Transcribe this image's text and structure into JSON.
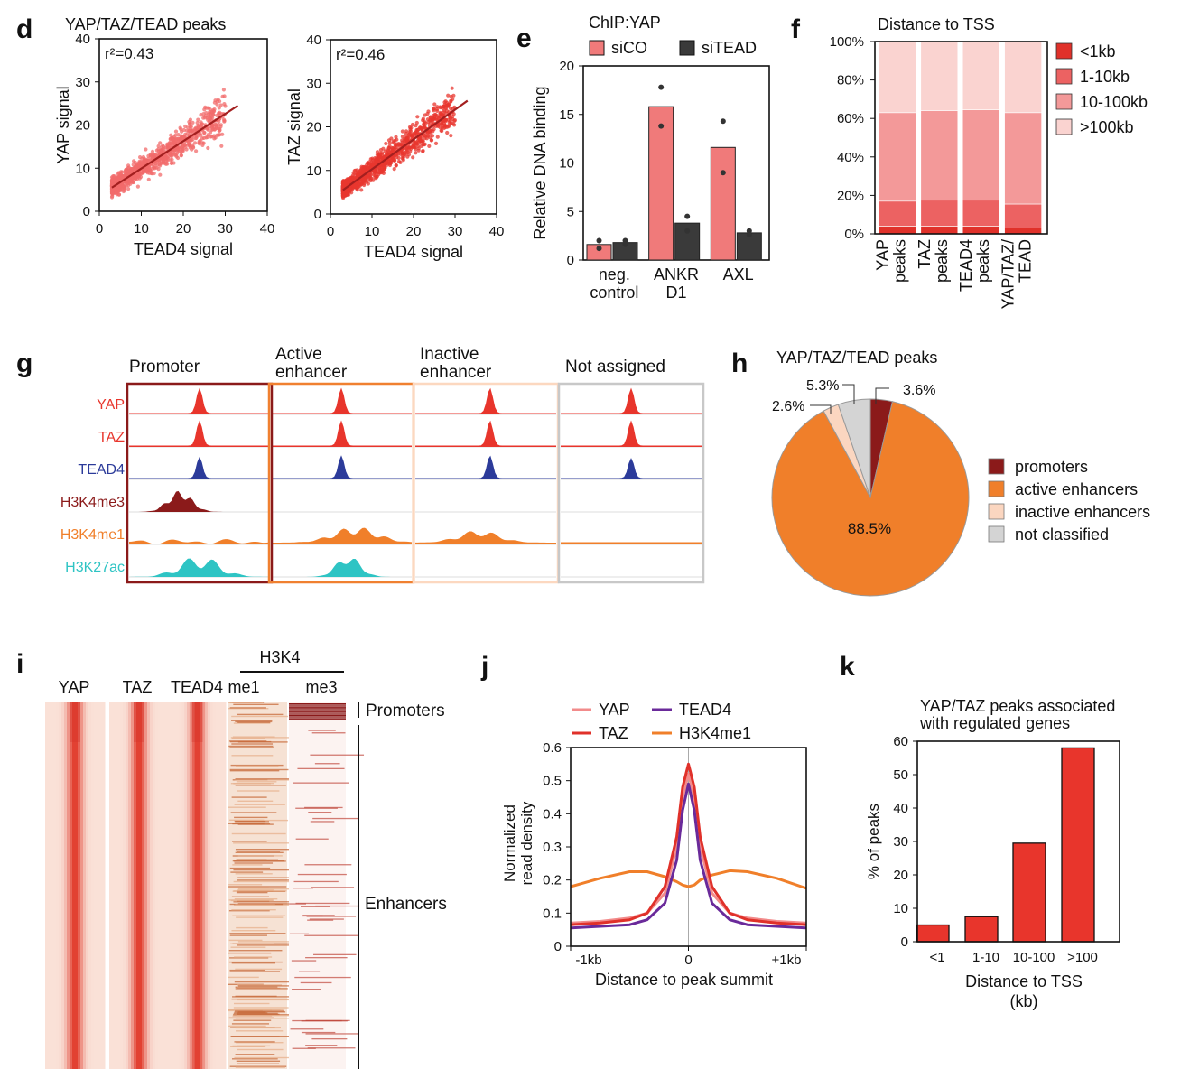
{
  "panels": {
    "d": {
      "letter": "d",
      "title": "YAP/TAZ/TEAD peaks"
    },
    "e": {
      "letter": "e"
    },
    "f": {
      "letter": "f"
    },
    "g": {
      "letter": "g"
    },
    "h": {
      "letter": "h"
    },
    "i": {
      "letter": "i"
    },
    "j": {
      "letter": "j"
    },
    "k": {
      "letter": "k"
    }
  },
  "chart_data": [
    {
      "id": "d1",
      "type": "scatter",
      "title": "YAP/TAZ/TEAD peaks",
      "xlabel": "TEAD4 signal",
      "ylabel": "YAP signal",
      "xlim": [
        0,
        40
      ],
      "ylim": [
        0,
        40
      ],
      "xticks": [
        "0",
        "10",
        "20",
        "30",
        "40"
      ],
      "yticks": [
        "0",
        "10",
        "20",
        "30",
        "40"
      ],
      "annotation": "r²=0.43",
      "trend": {
        "from": [
          3,
          5.5
        ],
        "to": [
          33,
          24.5
        ]
      },
      "color": "#f26b6b"
    },
    {
      "id": "d2",
      "type": "scatter",
      "xlabel": "TEAD4 signal",
      "ylabel": "TAZ signal",
      "xlim": [
        0,
        40
      ],
      "ylim": [
        0,
        40
      ],
      "xticks": [
        "0",
        "10",
        "20",
        "30",
        "40"
      ],
      "yticks": [
        "0",
        "10",
        "20",
        "30",
        "40"
      ],
      "annotation": "r²=0.46",
      "trend": {
        "from": [
          3,
          5.5
        ],
        "to": [
          33,
          26
        ]
      },
      "color": "#e8372f"
    },
    {
      "id": "e",
      "type": "bar",
      "title": "ChIP:YAP",
      "ylabel": "Relative DNA binding",
      "ylim": [
        0,
        20
      ],
      "yticks": [
        "0",
        "5",
        "10",
        "15",
        "20"
      ],
      "categories": [
        "neg. control",
        "ANKR D1",
        "AXL"
      ],
      "category_lines": [
        [
          "neg.",
          "control"
        ],
        [
          "ANKR",
          "D1"
        ],
        [
          "AXL"
        ]
      ],
      "series": [
        {
          "name": "siCO",
          "color": "#f07a7a",
          "values": [
            1.6,
            15.8,
            11.6
          ],
          "points": [
            [
              1.2,
              2.0
            ],
            [
              17.8,
              13.8
            ],
            [
              14.3,
              9.0
            ]
          ]
        },
        {
          "name": "siTEAD",
          "color": "#3a3a3a",
          "values": [
            1.8,
            3.8,
            2.8
          ],
          "points": [
            [
              2.0,
              1.6
            ],
            [
              4.5,
              3.0
            ],
            [
              3.0,
              2.6
            ]
          ]
        }
      ]
    },
    {
      "id": "f",
      "type": "bar",
      "stacked": true,
      "title": "Distance to TSS",
      "categories": [
        "YAP peaks",
        "TAZ peaks",
        "TEAD4 peaks",
        "YAP/TAZ/ TEAD"
      ],
      "category_lines": [
        [
          "YAP",
          "peaks"
        ],
        [
          "TAZ",
          "peaks"
        ],
        [
          "TEAD4",
          "peaks"
        ],
        [
          "YAP/TAZ/",
          "TEAD"
        ]
      ],
      "yticks": [
        "0%",
        "20%",
        "40%",
        "60%",
        "80%",
        "100%"
      ],
      "ylim": [
        0,
        100
      ],
      "series": [
        {
          "name": "<1kb",
          "color": "#e0312a",
          "values": [
            4,
            4,
            4,
            3
          ]
        },
        {
          "name": "1-10kb",
          "color": "#ec6262",
          "values": [
            13,
            13.5,
            13.5,
            12.5
          ]
        },
        {
          "name": "10-100kb",
          "color": "#f39999",
          "values": [
            46,
            46.5,
            47,
            47.5
          ]
        },
        {
          "name": ">100kb",
          "color": "#fad3d0",
          "values": [
            37,
            36,
            35.5,
            37
          ]
        }
      ]
    },
    {
      "id": "g",
      "type": "table",
      "columns": [
        "Promoter",
        "Active enhancer",
        "Inactive enhancer",
        "Not assigned"
      ],
      "column_lines": [
        [
          "Promoter"
        ],
        [
          "Active",
          "enhancer"
        ],
        [
          "Inactive",
          "enhancer"
        ],
        [
          "Not assigned"
        ]
      ],
      "column_colors": [
        "#8b1a1a",
        "#f08030",
        "#fcd8c0",
        "#c8c8c8"
      ],
      "tracks": [
        {
          "name": "YAP",
          "color": "#e8352c"
        },
        {
          "name": "TAZ",
          "color": "#e8352c"
        },
        {
          "name": "TEAD4",
          "color": "#2c3b9a"
        },
        {
          "name": "H3K4me3",
          "color": "#8b1a1a"
        },
        {
          "name": "H3K4me1",
          "color": "#f07f2a"
        },
        {
          "name": "H3K27ac",
          "color": "#2ec4c4"
        }
      ]
    },
    {
      "id": "h",
      "type": "pie",
      "title": "YAP/TAZ/TEAD peaks",
      "slices": [
        {
          "label": "promoters",
          "value": 3.6,
          "text": "3.6%",
          "color": "#8b1a1a"
        },
        {
          "label": "active enhancers",
          "value": 88.5,
          "text": "88.5%",
          "color": "#f07f2a"
        },
        {
          "label": "inactive enhancers",
          "value": 2.6,
          "text": "2.6%",
          "color": "#fbd6c0"
        },
        {
          "label": "not classified",
          "value": 5.3,
          "text": "5.3%",
          "color": "#d4d4d4"
        }
      ]
    },
    {
      "id": "i",
      "type": "heatmap",
      "columns": [
        "YAP",
        "TAZ",
        "TEAD4",
        "me1",
        "me3"
      ],
      "group_label": "H3K4",
      "row_groups": [
        "Promoters",
        "Enhancers"
      ]
    },
    {
      "id": "j",
      "type": "line",
      "ylabel": "Normalized read density",
      "ylabel_lines": [
        "Normalized",
        "read density"
      ],
      "xlabel": "Distance to peak summit",
      "xlim": [
        -1,
        1
      ],
      "ylim": [
        0,
        0.6
      ],
      "xticks": [
        "-1kb",
        "0",
        "+1kb"
      ],
      "yticks": [
        "0",
        "0.1",
        "0.2",
        "0.3",
        "0.4",
        "0.5",
        "0.6"
      ],
      "x": [
        -1.0,
        -0.75,
        -0.5,
        -0.35,
        -0.2,
        -0.1,
        -0.05,
        0.0,
        0.05,
        0.1,
        0.2,
        0.35,
        0.5,
        0.75,
        1.0
      ],
      "series": [
        {
          "name": "YAP",
          "color": "#f28b8b",
          "values": [
            0.07,
            0.075,
            0.085,
            0.1,
            0.16,
            0.3,
            0.45,
            0.52,
            0.45,
            0.3,
            0.16,
            0.1,
            0.085,
            0.075,
            0.07
          ]
        },
        {
          "name": "TAZ",
          "color": "#e0312a",
          "values": [
            0.065,
            0.07,
            0.08,
            0.1,
            0.18,
            0.33,
            0.48,
            0.55,
            0.48,
            0.33,
            0.18,
            0.1,
            0.08,
            0.07,
            0.065
          ]
        },
        {
          "name": "TEAD4",
          "color": "#6a2a9a",
          "values": [
            0.055,
            0.06,
            0.065,
            0.08,
            0.13,
            0.26,
            0.41,
            0.49,
            0.41,
            0.26,
            0.13,
            0.08,
            0.065,
            0.06,
            0.055
          ]
        },
        {
          "name": "H3K4me1",
          "color": "#f07f2a",
          "values": [
            0.18,
            0.205,
            0.225,
            0.225,
            0.21,
            0.195,
            0.185,
            0.18,
            0.185,
            0.2,
            0.215,
            0.228,
            0.225,
            0.205,
            0.175
          ]
        }
      ]
    },
    {
      "id": "k",
      "type": "bar",
      "title": "YAP/TAZ peaks associated with regulated genes",
      "title_lines": [
        "YAP/TAZ peaks associated",
        "with regulated genes"
      ],
      "categories": [
        "<1",
        "1-10",
        "10-100",
        ">100"
      ],
      "values": [
        5,
        7.5,
        29.5,
        58
      ],
      "ylim": [
        0,
        60
      ],
      "yticks": [
        "0",
        "10",
        "20",
        "30",
        "40",
        "50",
        "60"
      ],
      "xlabel": "Distance to TSS (kb)",
      "xlabel_lines": [
        "Distance to TSS",
        "(kb)"
      ],
      "ylabel": "% of peaks",
      "color": "#e8352c"
    }
  ]
}
